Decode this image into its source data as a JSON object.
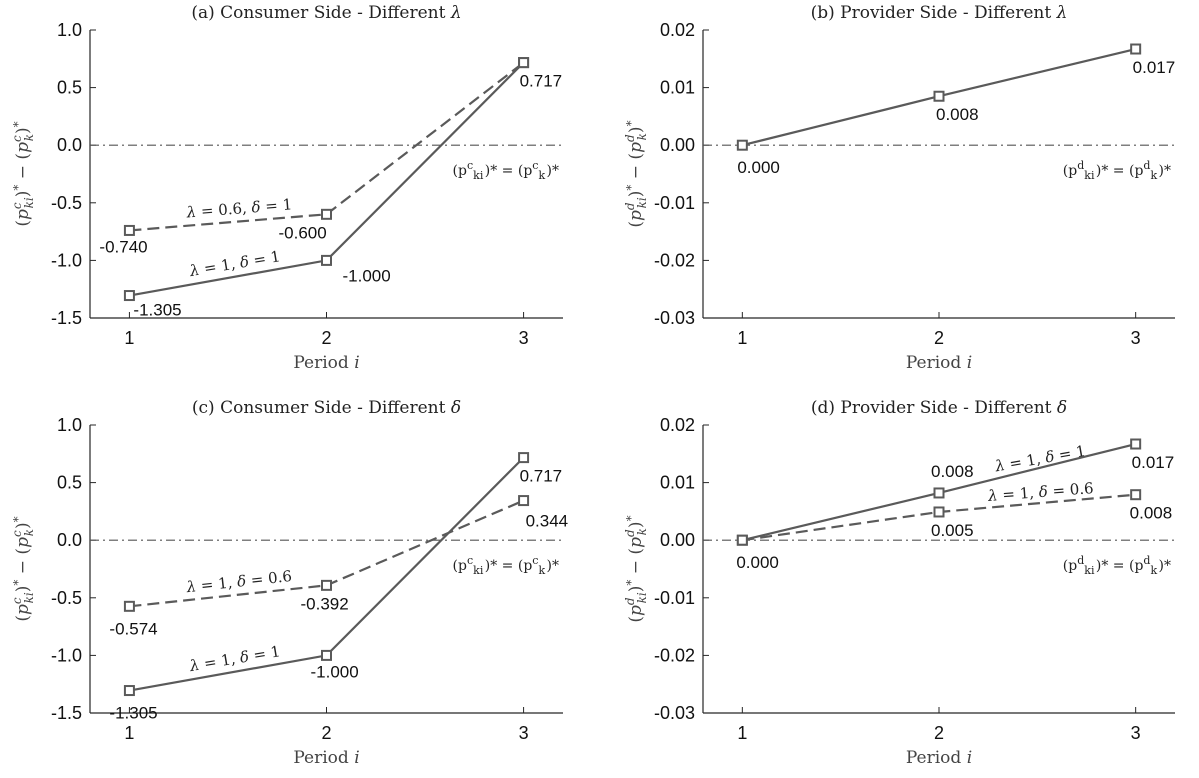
{
  "colors": {
    "line": "#5a5a5a",
    "axis": "#262626",
    "ref": "#555555"
  },
  "chart_data": [
    {
      "type": "line",
      "title": "(a) Consumer Side - Different λ",
      "xlabel": "Period i",
      "ylabel": "(p^c_ki)* − (p^c_k)*",
      "categories": [
        "1",
        "2",
        "3"
      ],
      "x": [
        1,
        2,
        3
      ],
      "xlim": [
        0.8,
        3.2
      ],
      "ylim": [
        -1.5,
        1.0
      ],
      "yticks": [
        1.0,
        0.5,
        0.0,
        -0.5,
        -1.0,
        -1.5
      ],
      "ytick_labels": [
        "1.0",
        "0.5",
        "0.0",
        "-0.5",
        "-1.0",
        "-1.5"
      ],
      "reference_line": {
        "y": 0,
        "label": "(p^c_ki)* = (p^c_k)*"
      },
      "series": [
        {
          "name": "λ = 1, δ = 1",
          "style": "solid",
          "values": [
            -1.305,
            -1.0,
            0.717
          ],
          "labels": [
            "-1.305",
            "-1.000",
            "0.717"
          ]
        },
        {
          "name": "λ = 0.6, δ = 1",
          "style": "dashed",
          "values": [
            -0.74,
            -0.6,
            0.717
          ],
          "labels": [
            "-0.740",
            "-0.600",
            ""
          ]
        }
      ],
      "grid": false
    },
    {
      "type": "line",
      "title": "(b) Provider Side - Different λ",
      "xlabel": "Period i",
      "ylabel": "(p^d_ki)* − (p^d_k)*",
      "categories": [
        "1",
        "2",
        "3"
      ],
      "x": [
        1,
        2,
        3
      ],
      "xlim": [
        0.8,
        3.2
      ],
      "ylim": [
        -0.03,
        0.02
      ],
      "yticks": [
        0.02,
        0.01,
        0.0,
        -0.01,
        -0.02,
        -0.03
      ],
      "ytick_labels": [
        "0.02",
        "0.01",
        "0.00",
        "-0.01",
        "-0.02",
        "-0.03"
      ],
      "reference_line": {
        "y": 0,
        "label": "(p^d_ki)* = (p^d_k)*"
      },
      "series": [
        {
          "style": "solid",
          "values": [
            0.0,
            0.0085,
            0.0167
          ],
          "labels": [
            "0.000",
            "0.008",
            "0.017"
          ]
        }
      ],
      "grid": false
    },
    {
      "type": "line",
      "title": "(c) Consumer Side - Different δ",
      "xlabel": "Period i",
      "ylabel": "(p^c_ki)* − (p^c_k)*",
      "categories": [
        "1",
        "2",
        "3"
      ],
      "x": [
        1,
        2,
        3
      ],
      "xlim": [
        0.8,
        3.2
      ],
      "ylim": [
        -1.5,
        1.0
      ],
      "yticks": [
        1.0,
        0.5,
        0.0,
        -0.5,
        -1.0,
        -1.5
      ],
      "ytick_labels": [
        "1.0",
        "0.5",
        "0.0",
        "-0.5",
        "-1.0",
        "-1.5"
      ],
      "reference_line": {
        "y": 0,
        "label": "(p^c_ki)* = (p^c_k)*"
      },
      "series": [
        {
          "name": "λ = 1, δ = 1",
          "style": "solid",
          "values": [
            -1.305,
            -1.0,
            0.717
          ],
          "labels": [
            "-1.305",
            "-1.000",
            "0.717"
          ]
        },
        {
          "name": "λ = 1, δ = 0.6",
          "style": "dashed",
          "values": [
            -0.574,
            -0.392,
            0.344
          ],
          "labels": [
            "-0.574",
            "-0.392",
            "0.344"
          ]
        }
      ],
      "grid": false
    },
    {
      "type": "line",
      "title": "(d) Provider Side - Different δ",
      "xlabel": "Period i",
      "ylabel": "(p^d_ki)* − (p^d_k)*",
      "categories": [
        "1",
        "2",
        "3"
      ],
      "x": [
        1,
        2,
        3
      ],
      "xlim": [
        0.8,
        3.2
      ],
      "ylim": [
        -0.03,
        0.02
      ],
      "yticks": [
        0.02,
        0.01,
        0.0,
        -0.01,
        -0.02,
        -0.03
      ],
      "ytick_labels": [
        "0.02",
        "0.01",
        "0.00",
        "-0.01",
        "-0.02",
        "-0.03"
      ],
      "reference_line": {
        "y": 0,
        "label": "(p^d_ki)* = (p^d_k)*"
      },
      "series": [
        {
          "name": "λ = 1, δ = 1",
          "style": "solid",
          "values": [
            0.0,
            0.0082,
            0.0167
          ],
          "labels": [
            "0.000",
            "0.008",
            "0.017"
          ]
        },
        {
          "name": "λ = 1, δ = 0.6",
          "style": "dashed",
          "values": [
            0.0,
            0.0049,
            0.0079
          ],
          "labels": [
            "",
            "0.005",
            "0.008"
          ]
        }
      ],
      "grid": false
    }
  ]
}
